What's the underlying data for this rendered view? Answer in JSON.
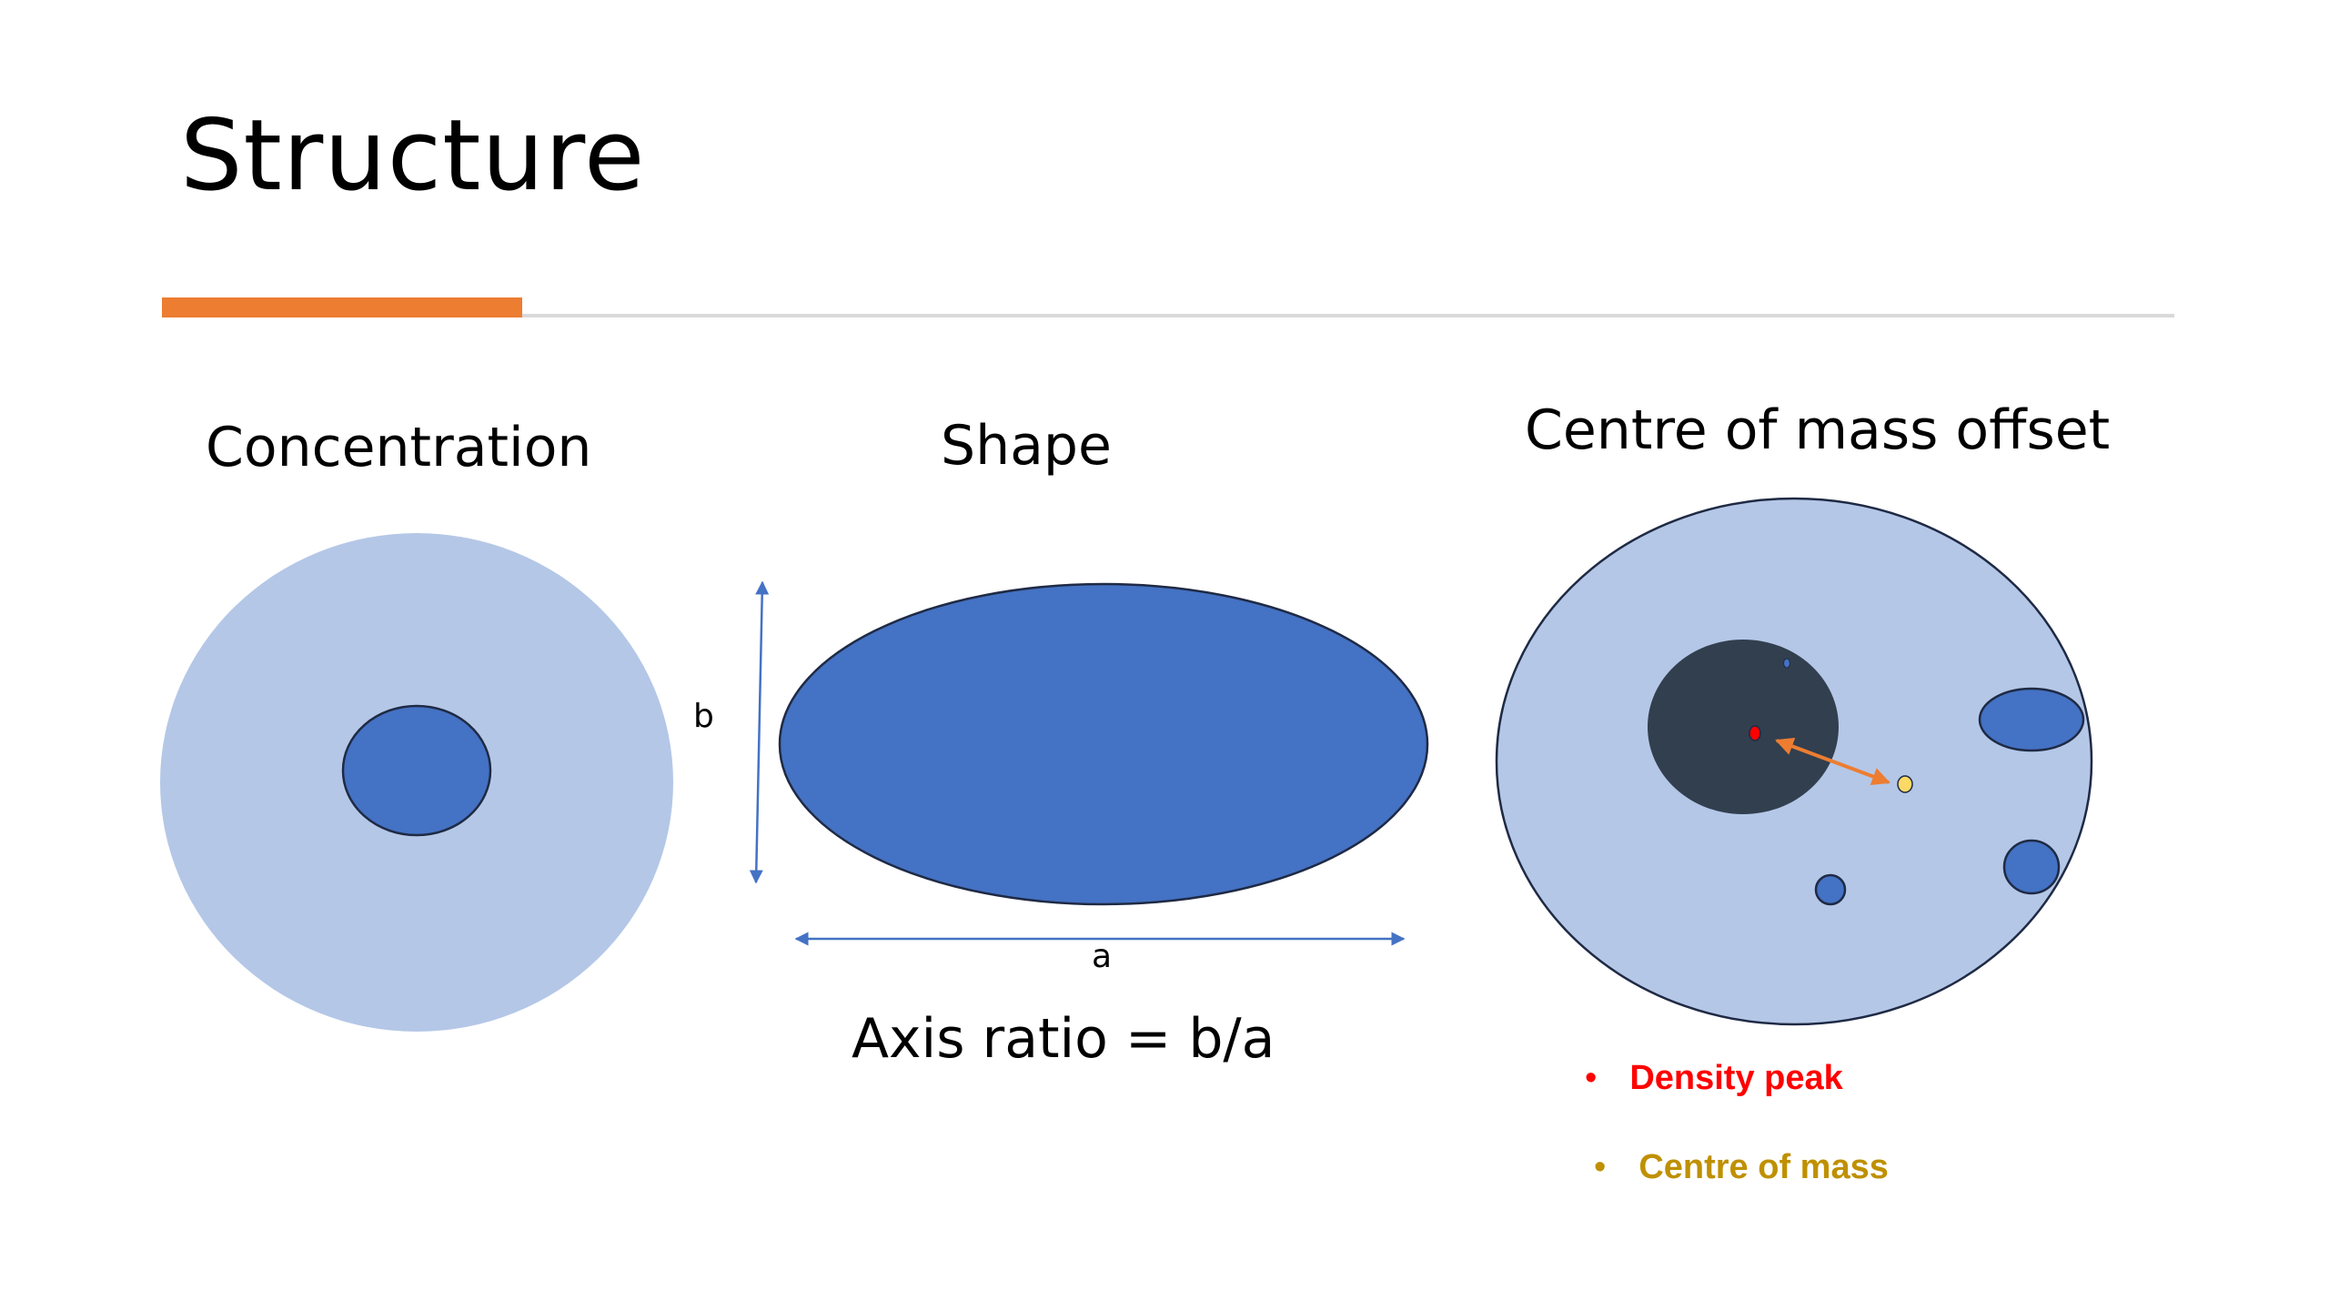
{
  "slide": {
    "title": "Structure",
    "accent_color": "#ED7D31"
  },
  "panels": {
    "concentration": {
      "heading": "Concentration"
    },
    "shape": {
      "heading": "Shape",
      "label_b": "b",
      "label_a": "a",
      "formula": "Axis ratio = b/a"
    },
    "centre_of_mass": {
      "heading": "Centre of mass offset",
      "legend": [
        {
          "bullet": "•",
          "label": "Density peak",
          "color": "#FF0000"
        },
        {
          "bullet": "•",
          "label": "Centre of mass",
          "color": "#BF9000"
        }
      ]
    }
  },
  "colors": {
    "light_blue": "#B4C7E7",
    "mid_blue": "#4472C4",
    "dark_navy": "#323F4F",
    "outline": "#1F2A44",
    "arrow": "#ED7D31",
    "peak": "#FF0000",
    "com": "#FFD966"
  }
}
